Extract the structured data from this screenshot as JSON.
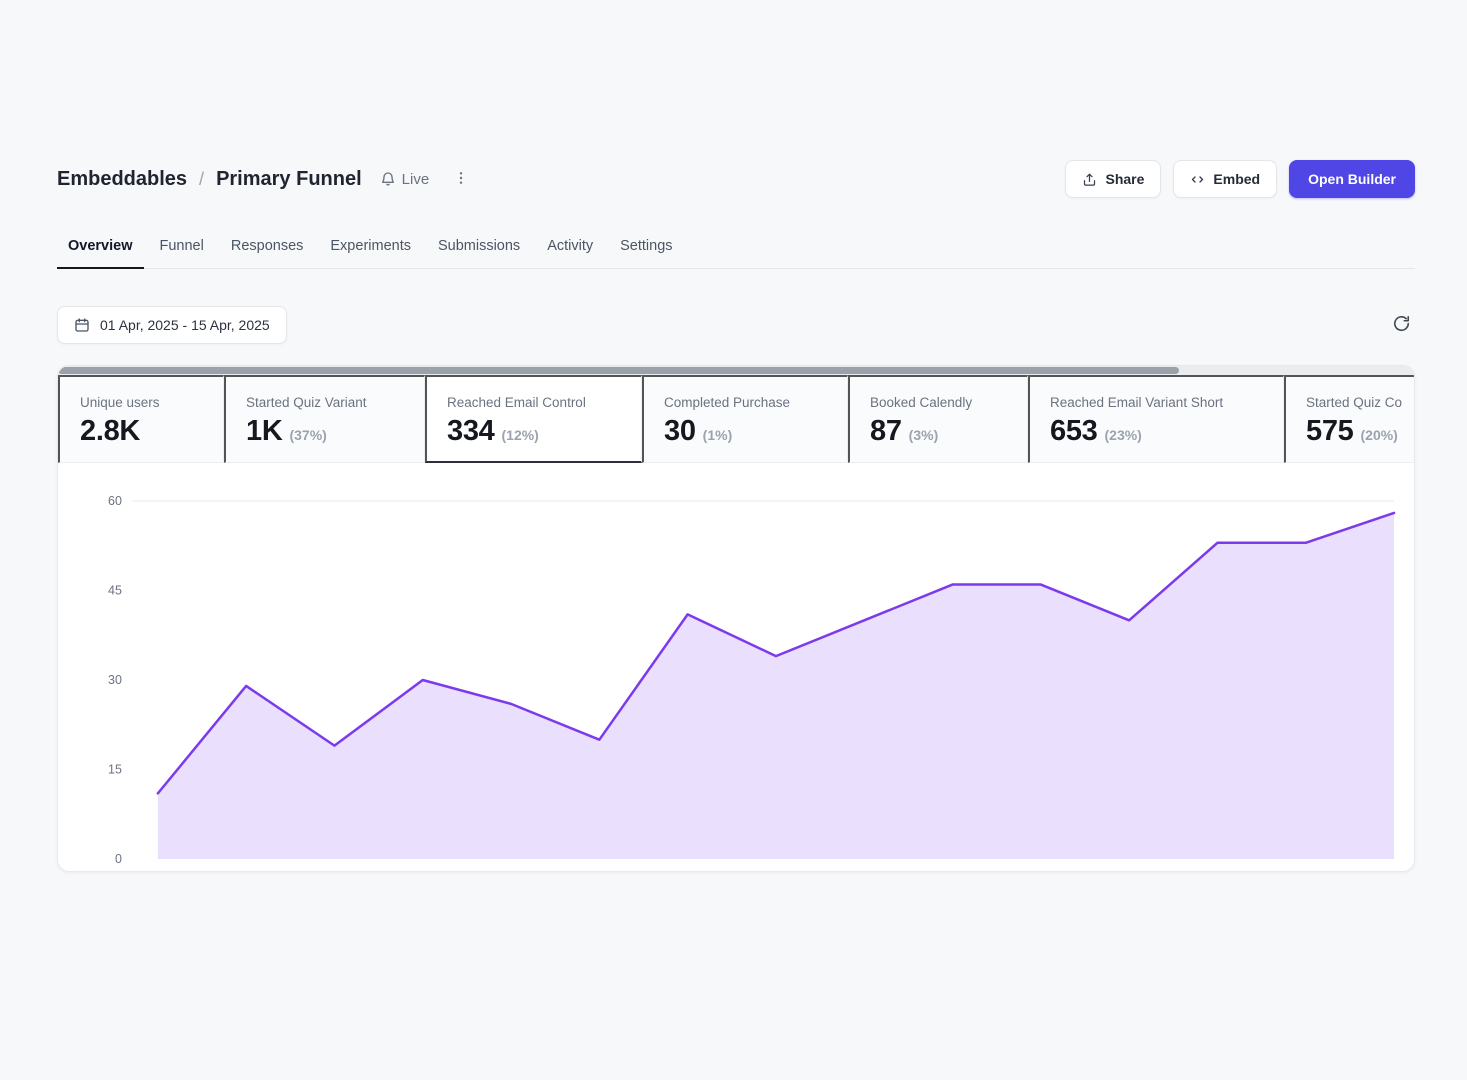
{
  "header": {
    "breadcrumb": {
      "root": "Embeddables",
      "separator": "/",
      "current": "Primary Funnel"
    },
    "status": {
      "label": "Live"
    },
    "actions": {
      "share": "Share",
      "embed": "Embed",
      "open_builder": "Open Builder"
    }
  },
  "tabs": {
    "items": [
      {
        "label": "Overview",
        "active": true
      },
      {
        "label": "Funnel",
        "active": false
      },
      {
        "label": "Responses",
        "active": false
      },
      {
        "label": "Experiments",
        "active": false
      },
      {
        "label": "Submissions",
        "active": false
      },
      {
        "label": "Activity",
        "active": false
      },
      {
        "label": "Settings",
        "active": false
      }
    ]
  },
  "filters": {
    "date_range": "01 Apr, 2025 - 15 Apr, 2025"
  },
  "metrics": {
    "items": [
      {
        "label": "Unique users",
        "value": "2.8K",
        "percent": "",
        "selected": false
      },
      {
        "label": "Started Quiz Variant",
        "value": "1K",
        "percent": "(37%)",
        "selected": false
      },
      {
        "label": "Reached Email Control",
        "value": "334",
        "percent": "(12%)",
        "selected": true
      },
      {
        "label": "Completed Purchase",
        "value": "30",
        "percent": "(1%)",
        "selected": false
      },
      {
        "label": "Booked Calendly",
        "value": "87",
        "percent": "(3%)",
        "selected": false
      },
      {
        "label": "Reached Email Variant Short",
        "value": "653",
        "percent": "(23%)",
        "selected": false
      },
      {
        "label": "Started Quiz Co",
        "value": "575",
        "percent": "(20%)",
        "selected": false
      }
    ]
  },
  "chart_data": {
    "type": "area",
    "title": "",
    "xlabel": "",
    "ylabel": "",
    "x_points": 15,
    "values": [
      11,
      29,
      19,
      30,
      26,
      20,
      41,
      34,
      40,
      46,
      46,
      40,
      53,
      53,
      58
    ],
    "yticks": [
      0,
      15,
      30,
      45,
      60
    ],
    "ylim": [
      0,
      60
    ],
    "grid": "top-line-only",
    "legend": "none",
    "line_color": "#7c3aed",
    "fill_color": "rgba(124,58,237,0.16)"
  },
  "colors": {
    "accent": "#4f46e5",
    "chart_line": "#7c3aed",
    "chart_fill": "#e9def7",
    "page_bg": "#f7f8fa",
    "text_dark": "#111827",
    "text_gray": "#6b7280"
  }
}
